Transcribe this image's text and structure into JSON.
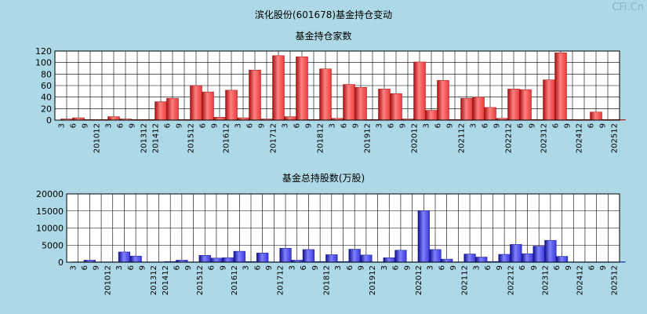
{
  "page_title": "滨化股份(601678)基金持仓变动",
  "brand": "CFi.Cn",
  "colors": {
    "background": "#add8e6",
    "red_bar": "#e83a3a",
    "blue_bar": "#3a3ad8",
    "grid": "#000000"
  },
  "chart_data": [
    {
      "type": "bar",
      "title": "基金持仓家数",
      "categories": [
        "3",
        "6",
        "9",
        "201012",
        "3",
        "6",
        "9",
        "201312",
        "201412",
        "6",
        "9",
        "201512",
        "6",
        "9",
        "201612",
        "3",
        "6",
        "9",
        "201712",
        "3",
        "6",
        "9",
        "201812",
        "3",
        "6",
        "9",
        "201912",
        "3",
        "6",
        "9",
        "202012",
        "3",
        "6",
        "9",
        "202112",
        "3",
        "6",
        "9",
        "202212",
        "6",
        "9",
        "202312",
        "6",
        "9",
        "202412",
        "6",
        "9",
        "202512"
      ],
      "values": [
        2,
        4,
        1,
        1,
        6,
        2,
        1,
        1,
        32,
        38,
        1,
        60,
        49,
        5,
        52,
        4,
        87,
        2,
        112,
        6,
        110,
        1,
        89,
        3,
        62,
        57,
        1,
        54,
        46,
        2,
        101,
        17,
        69,
        1,
        38,
        40,
        22,
        3,
        54,
        53,
        1,
        70,
        117,
        1,
        1,
        14,
        1,
        1
      ],
      "ylim": [
        0,
        120
      ],
      "yticks": [
        0,
        20,
        40,
        60,
        80,
        100,
        120
      ],
      "grid": true
    },
    {
      "type": "bar",
      "title": "基金总持股数(万股)",
      "categories": [
        "3",
        "6",
        "9",
        "201012",
        "3",
        "6",
        "9",
        "201312",
        "201412",
        "6",
        "9",
        "201512",
        "6",
        "9",
        "201612",
        "3",
        "6",
        "9",
        "201712",
        "3",
        "6",
        "9",
        "201812",
        "3",
        "6",
        "9",
        "201912",
        "3",
        "6",
        "9",
        "202012",
        "3",
        "6",
        "9",
        "202112",
        "3",
        "6",
        "9",
        "202212",
        "6",
        "9",
        "202312",
        "6",
        "9",
        "202412",
        "6",
        "9",
        "202512"
      ],
      "values": [
        100,
        600,
        100,
        100,
        3000,
        1800,
        100,
        100,
        200,
        600,
        100,
        2000,
        1200,
        1300,
        3200,
        200,
        2700,
        100,
        4100,
        600,
        3700,
        200,
        2200,
        200,
        3800,
        2100,
        100,
        1300,
        3500,
        100,
        15100,
        3700,
        900,
        100,
        2400,
        1500,
        200,
        2300,
        5200,
        2500,
        4700,
        6400,
        1700,
        100,
        100,
        100,
        100,
        100
      ],
      "ylim": [
        0,
        20000
      ],
      "yticks": [
        0,
        5000,
        10000,
        15000,
        20000
      ],
      "grid": true
    }
  ]
}
